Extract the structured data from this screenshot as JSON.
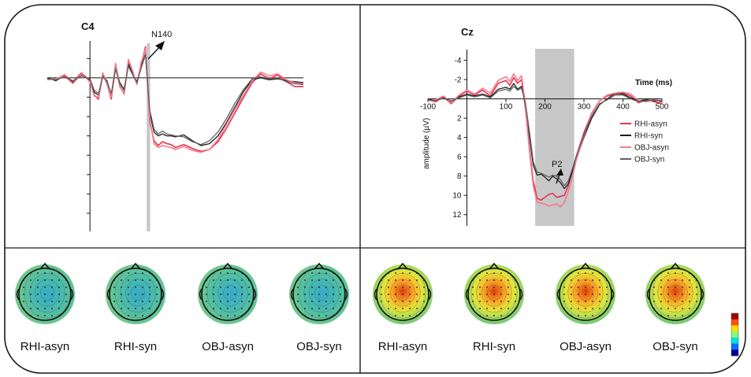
{
  "chart_data": [
    {
      "type": "line",
      "title": "C4",
      "annotation": "N140",
      "x": [
        -100,
        -80,
        -60,
        -40,
        -20,
        0,
        10,
        20,
        30,
        40,
        50,
        60,
        70,
        80,
        90,
        100,
        110,
        120,
        130,
        140,
        150,
        160,
        170,
        180,
        190,
        200,
        220,
        240,
        260,
        280,
        300,
        320,
        340,
        360,
        380,
        400,
        420,
        440,
        460,
        480,
        500
      ],
      "y_direction": "negative-up",
      "ylim": [
        -3,
        14
      ],
      "shaded_window": [
        133,
        141
      ],
      "series": [
        {
          "color": "#e8334f",
          "values": [
            0.1,
            0.2,
            -0.3,
            0.4,
            -0.5,
            0.3,
            1.8,
            2.2,
            -0.4,
            0.6,
            2.2,
            -1.3,
            0.9,
            1.6,
            -1.7,
            -0.6,
            0.6,
            -1.4,
            -3.2,
            4.5,
            6.5,
            7.0,
            6.6,
            6.8,
            6.9,
            7.2,
            6.9,
            7.3,
            7.6,
            7.4,
            6.6,
            5.2,
            3.6,
            2.0,
            0.5,
            -0.4,
            0.1,
            -0.3,
            0.4,
            0.9,
            0.9
          ]
        },
        {
          "color": "#1e1e1e",
          "values": [
            0.0,
            0.3,
            -0.2,
            0.5,
            -0.3,
            0.2,
            1.5,
            1.8,
            -0.2,
            0.3,
            1.8,
            -1.0,
            0.5,
            1.2,
            -1.4,
            -0.4,
            0.4,
            -1.1,
            -2.5,
            3.6,
            5.6,
            6.0,
            5.8,
            6.0,
            6.0,
            6.1,
            5.9,
            6.5,
            7.0,
            6.8,
            6.0,
            4.6,
            3.0,
            1.4,
            0.2,
            0.0,
            0.2,
            0.1,
            0.3,
            0.4,
            0.5
          ]
        },
        {
          "color": "#f47a8e",
          "values": [
            0.2,
            0.1,
            -0.2,
            0.6,
            -0.4,
            0.4,
            1.9,
            2.0,
            -0.5,
            0.5,
            2.0,
            -1.5,
            0.8,
            1.7,
            -1.9,
            -0.7,
            0.7,
            -1.6,
            -3.0,
            4.2,
            6.8,
            7.2,
            7.0,
            7.1,
            7.2,
            7.4,
            7.1,
            7.5,
            7.7,
            7.4,
            6.4,
            4.8,
            3.2,
            1.8,
            0.3,
            -0.6,
            -0.2,
            -0.4,
            0.2,
            0.5,
            0.6
          ]
        },
        {
          "color": "#606060",
          "values": [
            0.1,
            0.2,
            -0.1,
            0.3,
            -0.2,
            0.1,
            1.3,
            1.6,
            -0.1,
            0.4,
            1.6,
            -0.9,
            0.6,
            1.3,
            -1.2,
            -0.3,
            0.5,
            -1.0,
            -2.4,
            3.3,
            5.3,
            5.8,
            5.5,
            5.8,
            5.9,
            6.0,
            6.1,
            6.6,
            6.9,
            6.5,
            5.6,
            4.2,
            2.6,
            1.2,
            0.1,
            -0.1,
            0.1,
            0.0,
            0.4,
            0.6,
            0.7
          ]
        }
      ]
    },
    {
      "type": "line",
      "title": "Cz",
      "xlabel": "Time (ms)",
      "ylabel": "amplitude (µV)",
      "annotation": "P2",
      "x_ticks": [
        -100,
        100,
        200,
        300,
        400,
        500
      ],
      "x_tick_labels": [
        "-100",
        "100",
        "200",
        "300",
        "400",
        "500"
      ],
      "y_ticks": [
        -4,
        -2,
        2,
        4,
        6,
        8,
        10,
        12
      ],
      "y_tick_labels": [
        "-4",
        "-2",
        "2",
        "4",
        "6",
        "8",
        "10",
        "12"
      ],
      "xlim": [
        -100,
        500
      ],
      "ylim": [
        -5,
        13
      ],
      "y_direction": "negative-up",
      "shaded_window": [
        175,
        275
      ],
      "x": [
        -100,
        -80,
        -60,
        -40,
        -20,
        0,
        20,
        40,
        60,
        80,
        100,
        110,
        120,
        130,
        140,
        150,
        160,
        170,
        180,
        190,
        200,
        210,
        220,
        230,
        240,
        250,
        260,
        270,
        280,
        300,
        320,
        340,
        360,
        380,
        400,
        420,
        440,
        460,
        480,
        500
      ],
      "series": [
        {
          "name": "RHI-asyn",
          "color": "#e8334f",
          "values": [
            0.1,
            0.3,
            -0.2,
            0.5,
            -0.3,
            -0.8,
            -0.4,
            -0.9,
            -0.3,
            -1.6,
            -1.9,
            -1.4,
            -2.2,
            -1.6,
            -2.0,
            1.0,
            5.0,
            8.5,
            10.3,
            10.5,
            10.2,
            9.9,
            9.8,
            10.2,
            10.1,
            10.0,
            9.0,
            7.5,
            6.0,
            3.5,
            1.5,
            0.2,
            -0.3,
            -0.5,
            -0.6,
            -0.3,
            0.4,
            0.1,
            0.3,
            0.5
          ]
        },
        {
          "name": "RHI-syn",
          "color": "#1e1e1e",
          "values": [
            0.0,
            0.2,
            -0.1,
            0.3,
            -0.2,
            -0.5,
            -0.3,
            -0.5,
            -0.2,
            -1.0,
            -1.2,
            -1.0,
            -1.6,
            -1.0,
            -1.3,
            0.5,
            3.8,
            6.9,
            7.9,
            7.8,
            8.1,
            8.5,
            8.0,
            8.3,
            8.7,
            9.3,
            8.8,
            7.6,
            6.3,
            4.0,
            2.0,
            0.6,
            0.0,
            -0.6,
            -0.5,
            -0.1,
            0.2,
            0.1,
            0.2,
            0.3
          ]
        },
        {
          "name": "OBJ-asyn",
          "color": "#f47a8e",
          "values": [
            0.2,
            0.1,
            -0.3,
            0.4,
            -0.4,
            -0.9,
            -0.5,
            -1.1,
            -0.6,
            -1.9,
            -2.3,
            -1.8,
            -2.6,
            -1.9,
            -2.4,
            0.6,
            5.3,
            9.0,
            10.7,
            10.8,
            10.9,
            11.1,
            11.0,
            10.9,
            11.2,
            10.7,
            9.6,
            8.1,
            6.4,
            3.8,
            1.6,
            0.2,
            -0.4,
            -0.6,
            -0.7,
            -0.5,
            0.2,
            0.3,
            0.1,
            0.4
          ]
        },
        {
          "name": "OBJ-syn",
          "color": "#606060",
          "values": [
            0.1,
            0.2,
            -0.1,
            0.2,
            -0.1,
            -0.4,
            -0.2,
            -0.4,
            -0.1,
            -0.8,
            -1.0,
            -0.8,
            -1.3,
            -0.9,
            -1.1,
            0.4,
            3.3,
            6.5,
            7.6,
            7.7,
            7.9,
            8.1,
            7.9,
            8.0,
            8.4,
            9.0,
            8.5,
            7.3,
            6.0,
            3.7,
            1.8,
            0.5,
            0.1,
            -0.4,
            -0.4,
            0.0,
            0.3,
            0.2,
            0.1,
            0.2
          ]
        }
      ],
      "legend_position": "right"
    }
  ],
  "topomaps": {
    "left": [
      {
        "label": "RHI-asyn"
      },
      {
        "label": "RHI-syn"
      },
      {
        "label": "OBJ-asyn"
      },
      {
        "label": "OBJ-syn"
      }
    ],
    "right": [
      {
        "label": "RHI-asyn"
      },
      {
        "label": "RHI-syn"
      },
      {
        "label": "OBJ-asyn"
      },
      {
        "label": "OBJ-syn"
      }
    ],
    "colorbar": {
      "colors": [
        "#00008f",
        "#0070ff",
        "#00e0e0",
        "#80ff70",
        "#ffe000",
        "#ff5000",
        "#a00000"
      ]
    }
  }
}
